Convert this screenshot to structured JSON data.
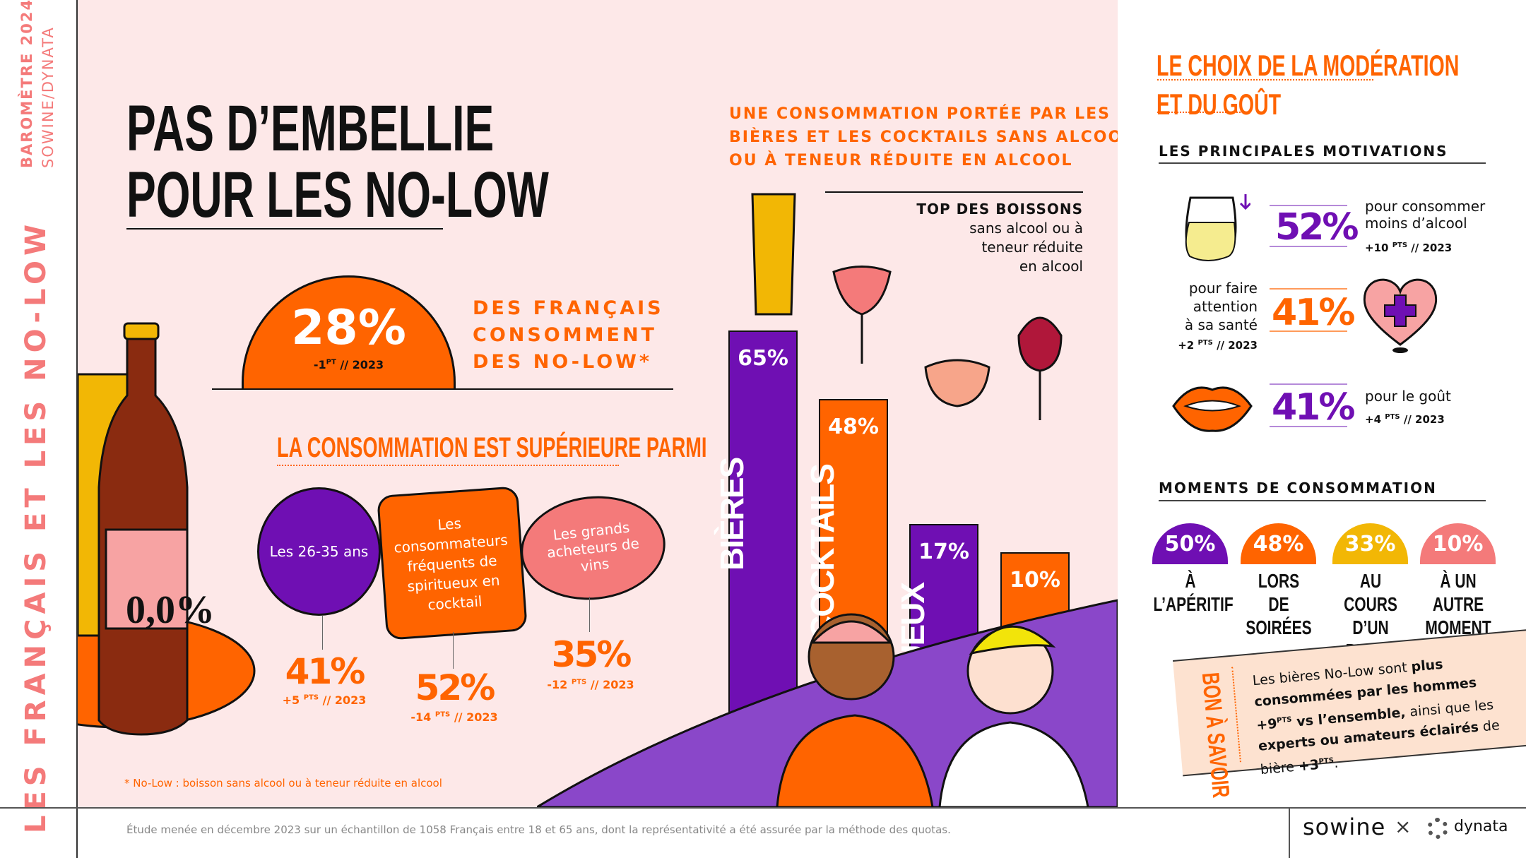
{
  "side": {
    "barometre": "BAROMÈTRE 2024",
    "partners": "SOWINE/DYNATA",
    "big_title": "LES FRANÇAIS ET LES NO-LOW"
  },
  "title": {
    "line1": "PAS D’EMBELLIE",
    "line2": "POUR LES NO-LOW"
  },
  "headline": {
    "value": "28%",
    "delta": "-1",
    "unit": "PT",
    "year": "// 2023",
    "text": [
      "DES FRANÇAIS",
      "CONSOMMENT",
      "DES NO-LOW*"
    ]
  },
  "segments": {
    "title": "LA CONSOMMATION EST SUPÉRIEURE PARMI",
    "items": [
      {
        "label": "Les 26-35 ans",
        "value": "41%",
        "delta": "+5",
        "unit": "PTS",
        "year": "// 2023",
        "color": "#6f0fb3"
      },
      {
        "label": "Les consommateurs fréquents de spiritueux en cocktail",
        "value": "52%",
        "delta": "-14",
        "unit": "PTS",
        "year": "// 2023",
        "color": "#ff6400"
      },
      {
        "label": "Les grands acheteurs de vins",
        "value": "35%",
        "delta": "-12",
        "unit": "PTS",
        "year": "// 2023",
        "color": "#f47a7a"
      }
    ]
  },
  "drinks": {
    "heading": [
      "UNE CONSOMMATION PORTÉE PAR LES",
      "BIÈRES ET LES COCKTAILS SANS ALCOOL",
      "OU À TENEUR RÉDUITE EN ALCOOL"
    ],
    "top_title": "TOP DES BOISSONS",
    "top_sub": [
      "sans alcool ou à",
      "teneur réduite",
      "en alcool"
    ],
    "chart_data": {
      "type": "bar",
      "categories": [
        "BIÈRES",
        "COCKTAILS",
        "SPIRITUEUX",
        "VINS"
      ],
      "values": [
        65,
        48,
        17,
        10
      ],
      "labels": [
        "65%",
        "48%",
        "17%",
        "10%"
      ],
      "colors": [
        "#6f0fb3",
        "#ff6400",
        "#6f0fb3",
        "#ff6400"
      ]
    }
  },
  "bottle_label": "0,0%",
  "footnote": "* No-Low : boisson sans alcool ou à teneur réduite en alcool",
  "study": "Étude menée en décembre 2023 sur un échantillon de 1058 Français entre 18 et 65 ans, dont la représentativité a été assurée par la méthode des quotas.",
  "right": {
    "title1": "LE CHOIX DE LA MODÉRATION",
    "title2": "ET DU GOÛT",
    "motivations_title": "LES PRINCIPALES MOTIVATIONS",
    "motivations": [
      {
        "value": "52%",
        "text1": "pour consommer",
        "text2": "moins d’alcool",
        "delta": "+10",
        "unit": "PTS",
        "year": "// 2023"
      },
      {
        "value": "41%",
        "text1": "pour faire",
        "text2": "attention",
        "text3": "à sa santé",
        "delta": "+2",
        "unit": "PTS",
        "year": "// 2023"
      },
      {
        "value": "41%",
        "text1": "pour le goût",
        "delta": "+4",
        "unit": "PTS",
        "year": "// 2023"
      }
    ],
    "moments_title": "MOMENTS DE CONSOMMATION",
    "moments": [
      {
        "value": "50%",
        "l1": "À L’APÉRITIF",
        "l2": "",
        "color": "#6f0fb3"
      },
      {
        "value": "48%",
        "l1": "LORS",
        "l2": "DE SOIRÉES",
        "color": "#ff6400"
      },
      {
        "value": "33%",
        "l1": "AU COURS",
        "l2": "D’UN REPAS",
        "color": "#f2b705"
      },
      {
        "value": "10%",
        "l1": "À UN AUTRE",
        "l2": "MOMENT",
        "color": "#f47a7a"
      }
    ],
    "tip": {
      "title": "BON À SAVOIR",
      "t1": "Les bières No-Low sont ",
      "b1": "plus consommées par les hommes",
      "b2": "+9",
      "unit": "PTS",
      "b3": " vs l’ensemble,",
      "t2": " ainsi que les ",
      "b4": "experts ou amateurs éclairés",
      "t3": " de bière ",
      "b5": "+3",
      "t4": "."
    },
    "logos": {
      "sowine": "sowine",
      "x": "×",
      "dynata": "dynata"
    }
  }
}
